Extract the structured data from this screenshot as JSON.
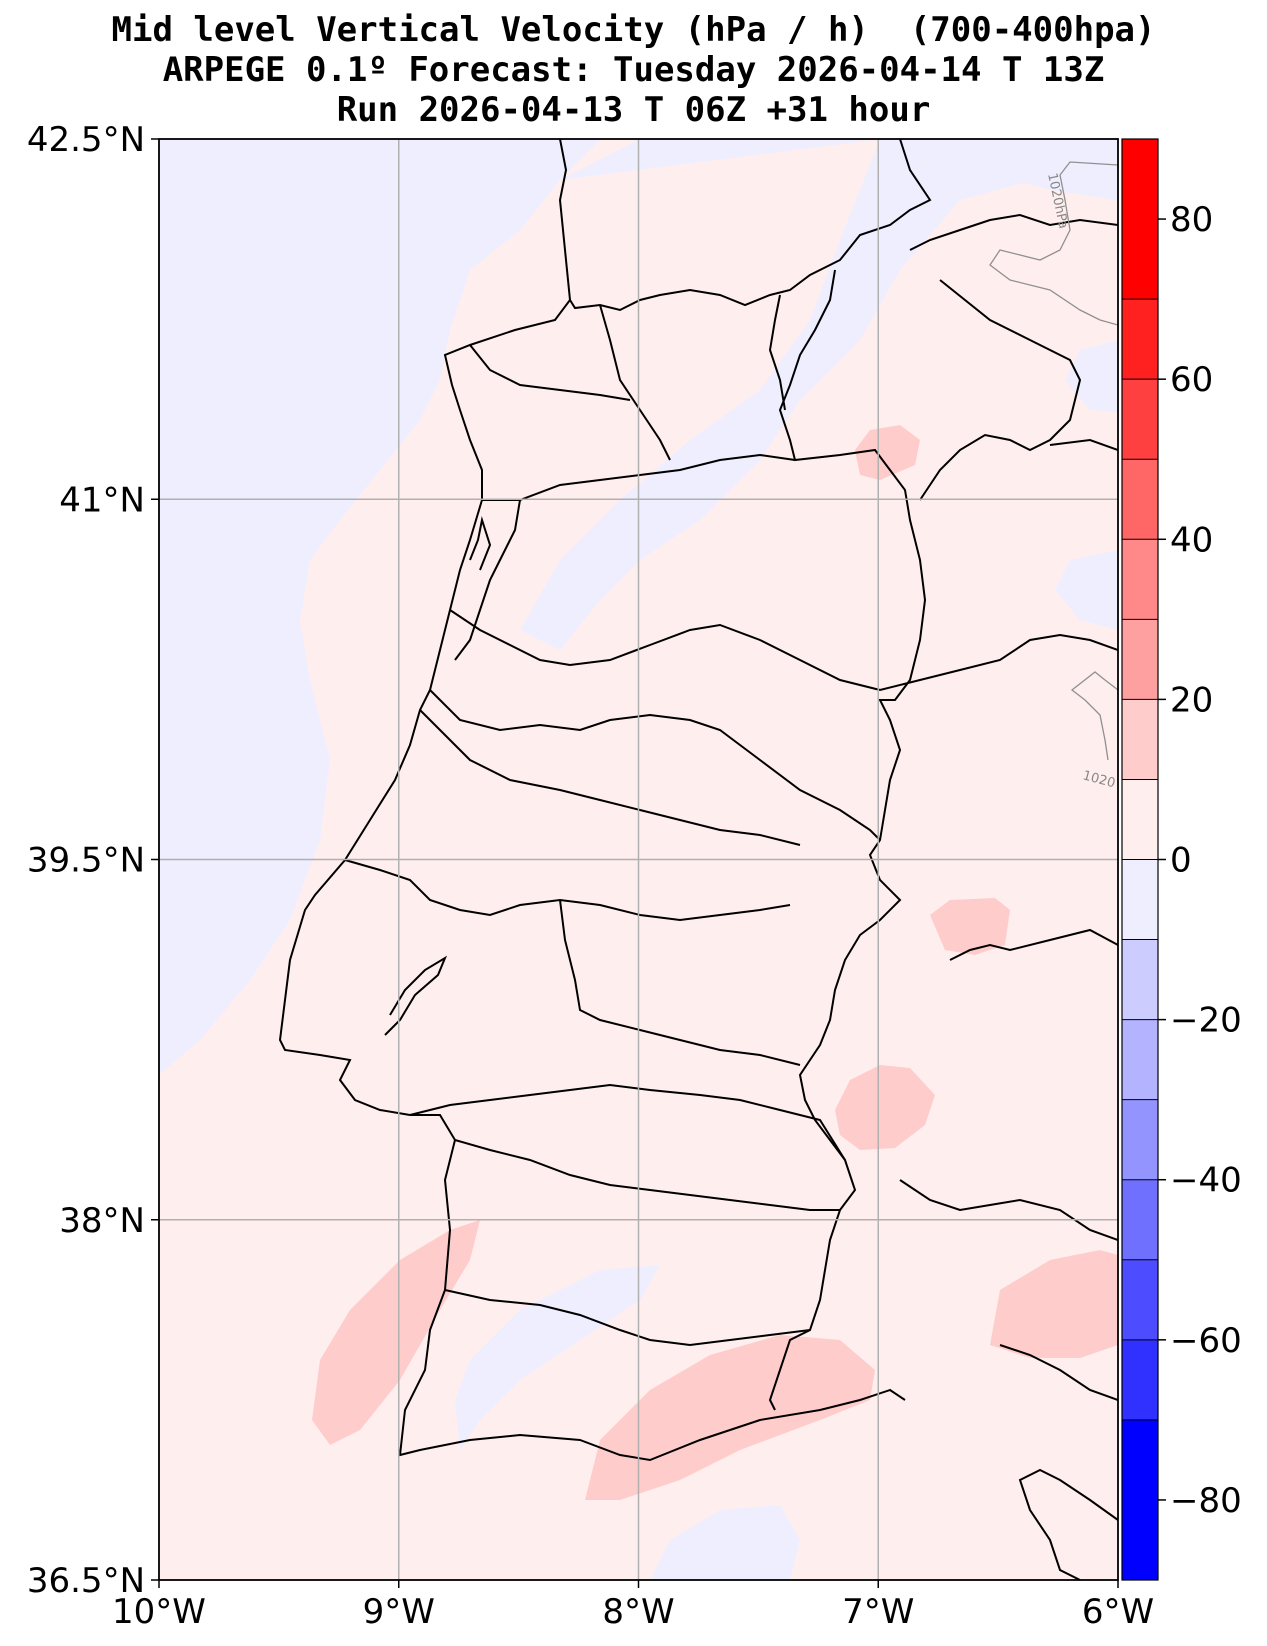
{
  "title": {
    "line1": "Mid level Vertical Velocity (hPa / h)  (700-400hpa)",
    "line2": "ARPEGE 0.1º Forecast: Tuesday 2026-04-14 T 13Z",
    "line3": "Run 2026-04-13 T 06Z +31 hour"
  },
  "map": {
    "lon_range": [
      -10,
      -6
    ],
    "lat_range": [
      36.5,
      42.5
    ],
    "lon_ticks": [
      {
        "value": -10,
        "label": "10°W"
      },
      {
        "value": -9,
        "label": "9°W"
      },
      {
        "value": -8,
        "label": "8°W"
      },
      {
        "value": -7,
        "label": "7°W"
      },
      {
        "value": -6,
        "label": "6°W"
      }
    ],
    "lat_ticks": [
      {
        "value": 42.5,
        "label": "42.5°N"
      },
      {
        "value": 41,
        "label": "41°N"
      },
      {
        "value": 39.5,
        "label": "39.5°N"
      },
      {
        "value": 38,
        "label": "38°N"
      },
      {
        "value": 36.5,
        "label": "36.5°N"
      }
    ],
    "grid": true,
    "isobar_labels": [
      "1020hPa",
      "1020"
    ]
  },
  "colorbar": {
    "range": [
      -90,
      90
    ],
    "ticks": [
      {
        "value": 80,
        "label": "80"
      },
      {
        "value": 60,
        "label": "60"
      },
      {
        "value": 40,
        "label": "40"
      },
      {
        "value": 20,
        "label": "20"
      },
      {
        "value": 0,
        "label": "0"
      },
      {
        "value": -20,
        "label": "−20"
      },
      {
        "value": -40,
        "label": "−40"
      },
      {
        "value": -60,
        "label": "−60"
      },
      {
        "value": -80,
        "label": "−80"
      }
    ],
    "levels": [
      {
        "from": 70,
        "to": 90,
        "color": "#ff0000"
      },
      {
        "from": 60,
        "to": 70,
        "color": "#ff2020"
      },
      {
        "from": 50,
        "to": 60,
        "color": "#ff4040"
      },
      {
        "from": 40,
        "to": 50,
        "color": "#ff6666"
      },
      {
        "from": 30,
        "to": 40,
        "color": "#ff8888"
      },
      {
        "from": 20,
        "to": 30,
        "color": "#ffa0a0"
      },
      {
        "from": 10,
        "to": 20,
        "color": "#ffcccc"
      },
      {
        "from": 0,
        "to": 10,
        "color": "#ffeeee"
      },
      {
        "from": -10,
        "to": 0,
        "color": "#eeeeff"
      },
      {
        "from": -20,
        "to": -10,
        "color": "#ccccff"
      },
      {
        "from": -30,
        "to": -20,
        "color": "#b3b3ff"
      },
      {
        "from": -40,
        "to": -30,
        "color": "#9494ff"
      },
      {
        "from": -50,
        "to": -40,
        "color": "#7070ff"
      },
      {
        "from": -60,
        "to": -50,
        "color": "#4d4dff"
      },
      {
        "from": -70,
        "to": -60,
        "color": "#3030ff"
      },
      {
        "from": -90,
        "to": -70,
        "color": "#0000ff"
      }
    ]
  },
  "colors": {
    "background_field": "#ffeeee",
    "light_blue": "#eeeeff",
    "light_red": "#ffcccc",
    "border": "#000000",
    "grid": "#b0b0b0",
    "isobar": "#909090"
  }
}
